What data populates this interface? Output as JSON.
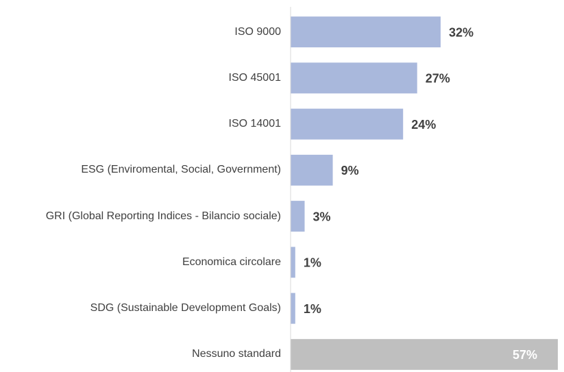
{
  "chart_data": {
    "type": "bar",
    "orientation": "horizontal",
    "categories": [
      "ISO 9000",
      "ISO 45001",
      "ISO 14001",
      "ESG (Enviromental, Social, Government)",
      "GRI (Global Reporting Indices - Bilancio sociale)",
      "Economica circolare",
      "SDG (Sustainable Development Goals)",
      "Nessuno standard"
    ],
    "values": [
      32,
      27,
      24,
      9,
      3,
      1,
      1,
      57
    ],
    "value_labels": [
      "32%",
      "27%",
      "24%",
      "9%",
      "3%",
      "1%",
      "1%",
      "57%"
    ],
    "colors": [
      "#a9b8dc",
      "#a9b8dc",
      "#a9b8dc",
      "#a9b8dc",
      "#a9b8dc",
      "#a9b8dc",
      "#a9b8dc",
      "#bfbfbf"
    ],
    "xlim": [
      0,
      57
    ]
  }
}
